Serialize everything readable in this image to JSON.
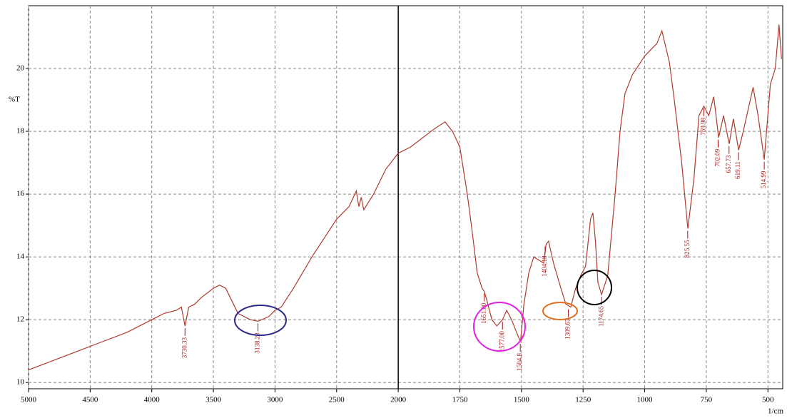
{
  "chart_data": {
    "type": "line",
    "y_label": "%T",
    "x_label": "1/cm",
    "xlim": [
      5000,
      440
    ],
    "ylim": [
      9.8,
      22
    ],
    "xticks": [
      5000,
      4500,
      4000,
      3500,
      3000,
      2500,
      2000,
      1750,
      1500,
      1250,
      1000,
      750,
      500
    ],
    "yticks": [
      10,
      12,
      14,
      16,
      18,
      20
    ],
    "grid": true,
    "series": [
      {
        "color": "#b03a2e",
        "x": [
          5000,
          4800,
          4600,
          4400,
          4200,
          4000,
          3900,
          3800,
          3760,
          3730,
          3700,
          3650,
          3600,
          3500,
          3450,
          3400,
          3350,
          3300,
          3200,
          3138,
          3050,
          3000,
          2950,
          2850,
          2700,
          2600,
          2500,
          2400,
          2340,
          2320,
          2300,
          2280,
          2200,
          2100,
          2000,
          1950,
          1900,
          1850,
          1810,
          1780,
          1750,
          1720,
          1700,
          1680,
          1660,
          1651,
          1640,
          1620,
          1600,
          1577,
          1560,
          1540,
          1520,
          1504,
          1490,
          1470,
          1450,
          1430,
          1410,
          1400,
          1390,
          1370,
          1340,
          1320,
          1300,
          1280,
          1260,
          1240,
          1220,
          1210,
          1200,
          1190,
          1175,
          1150,
          1120,
          1100,
          1080,
          1050,
          1000,
          950,
          930,
          900,
          880,
          850,
          825,
          800,
          780,
          760,
          740,
          720,
          700,
          680,
          657,
          640,
          619,
          600,
          560,
          540,
          515,
          490,
          470,
          455,
          445
        ],
        "values": [
          10.4,
          10.7,
          11.0,
          11.3,
          11.6,
          12.0,
          12.2,
          12.3,
          12.4,
          11.8,
          12.4,
          12.5,
          12.7,
          13.0,
          13.1,
          13.0,
          12.6,
          12.2,
          12.0,
          11.95,
          12.1,
          12.3,
          12.4,
          13.0,
          14.0,
          14.6,
          15.2,
          15.6,
          16.1,
          15.6,
          15.9,
          15.5,
          16.0,
          16.8,
          17.3,
          17.5,
          17.8,
          18.1,
          18.3,
          18.0,
          17.5,
          16.0,
          14.8,
          13.5,
          13.0,
          12.9,
          12.6,
          12.0,
          11.8,
          12.0,
          12.3,
          12.0,
          11.6,
          11.3,
          12.5,
          13.5,
          14.0,
          13.9,
          13.8,
          14.4,
          14.5,
          13.8,
          13.0,
          12.5,
          12.4,
          13.0,
          13.4,
          13.7,
          15.2,
          15.4,
          14.5,
          13.2,
          12.8,
          13.4,
          16.0,
          18.0,
          19.2,
          19.8,
          20.4,
          20.8,
          21.2,
          20.2,
          19.0,
          17.0,
          14.9,
          16.5,
          18.5,
          18.8,
          18.5,
          19.1,
          17.8,
          18.5,
          17.6,
          18.4,
          17.4,
          18.0,
          19.4,
          18.5,
          17.1,
          19.5,
          20.0,
          21.4,
          20.3
        ]
      }
    ],
    "peaks": {
      "x": [
        3730.33,
        3138.23,
        1651,
        1577,
        1504.8,
        1404.18,
        1309.67,
        1174.65,
        825.55,
        759.98,
        702.09,
        657.73,
        619.11,
        514.99
      ],
      "y": [
        11.8,
        11.95,
        12.9,
        12.0,
        11.3,
        14.4,
        12.4,
        12.8,
        14.9,
        18.8,
        17.8,
        17.6,
        17.4,
        17.1
      ],
      "value_labels": [
        "3730.33",
        "3138.23",
        "1651.00",
        "1577.00",
        "1504.8",
        "1404.18",
        "1309.67",
        "1174.65",
        "825.55",
        "759.98",
        "702.09",
        "657.73",
        "619.11",
        "514.99"
      ]
    }
  }
}
